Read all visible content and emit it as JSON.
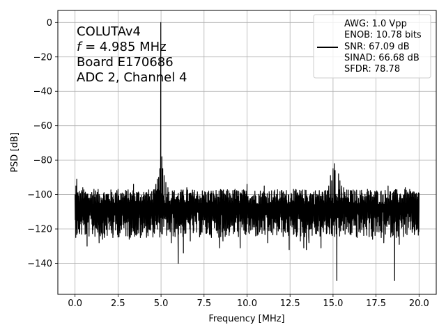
{
  "chart_data": {
    "type": "line",
    "xlabel": "Frequency [MHz]",
    "ylabel": "PSD [dB]",
    "xlim": [
      -1.0,
      21.0
    ],
    "ylim": [
      -158,
      7
    ],
    "xticks": [
      0.0,
      2.5,
      5.0,
      7.5,
      10.0,
      12.5,
      15.0,
      17.5,
      20.0
    ],
    "xtick_labels": [
      "0.0",
      "2.5",
      "5.0",
      "7.5",
      "10.0",
      "12.5",
      "15.0",
      "17.5",
      "20.0"
    ],
    "yticks": [
      0,
      -20,
      -40,
      -60,
      -80,
      -100,
      -120,
      -140
    ],
    "ytick_labels": [
      "0",
      "−20",
      "−40",
      "−60",
      "−80",
      "−100",
      "−120",
      "−140"
    ],
    "grid": true,
    "annotation": {
      "lines": [
        "COLUTAv4",
        "= 4.985 MHz",
        "Board E170686",
        "ADC 2, Channel 4"
      ],
      "italic_symbol": "f"
    },
    "legend": {
      "placement": "top-right",
      "lines": [
        "AWG: 1.0 Vpp",
        "ENOB: 10.78 bits",
        "SNR: 67.09 dB",
        "SINAD: 66.68 dB",
        "SFDR: 78.78"
      ]
    },
    "series": [
      {
        "color": "#000000",
        "noise_floor": {
          "x_range": [
            0.0,
            20.0
          ],
          "level": -108,
          "low": -125,
          "high": -97
        },
        "points": [
          {
            "x": 0.0,
            "y": -103
          },
          {
            "x": 0.02,
            "y": -112
          },
          {
            "x": 0.05,
            "y": -95
          },
          {
            "x": 0.08,
            "y": -116
          },
          {
            "x": 0.1,
            "y": -91
          },
          {
            "x": 0.13,
            "y": -106
          },
          {
            "x": 0.2,
            "y": -120
          },
          {
            "x": 0.45,
            "y": -96
          },
          {
            "x": 0.7,
            "y": -130
          },
          {
            "x": 1.1,
            "y": -97
          },
          {
            "x": 1.4,
            "y": -128
          },
          {
            "x": 1.6,
            "y": -126
          },
          {
            "x": 2.2,
            "y": -125
          },
          {
            "x": 2.5,
            "y": -97
          },
          {
            "x": 3.15,
            "y": -126
          },
          {
            "x": 3.4,
            "y": -94
          },
          {
            "x": 3.8,
            "y": -125
          },
          {
            "x": 4.4,
            "y": -120
          },
          {
            "x": 4.55,
            "y": -98
          },
          {
            "x": 4.7,
            "y": -94
          },
          {
            "x": 4.78,
            "y": -91
          },
          {
            "x": 4.86,
            "y": -90
          },
          {
            "x": 4.93,
            "y": -85
          },
          {
            "x": 4.985,
            "y": 0
          },
          {
            "x": 5.05,
            "y": -78
          },
          {
            "x": 5.1,
            "y": -85
          },
          {
            "x": 5.18,
            "y": -89
          },
          {
            "x": 5.28,
            "y": -93
          },
          {
            "x": 5.4,
            "y": -96
          },
          {
            "x": 5.6,
            "y": -128
          },
          {
            "x": 5.85,
            "y": -107
          },
          {
            "x": 6.0,
            "y": -140
          },
          {
            "x": 6.1,
            "y": -106
          },
          {
            "x": 6.3,
            "y": -134
          },
          {
            "x": 6.5,
            "y": -96
          },
          {
            "x": 6.7,
            "y": -127
          },
          {
            "x": 8.4,
            "y": -131
          },
          {
            "x": 8.6,
            "y": -127
          },
          {
            "x": 9.3,
            "y": -97
          },
          {
            "x": 9.6,
            "y": -131
          },
          {
            "x": 10.0,
            "y": -94
          },
          {
            "x": 10.6,
            "y": -122
          },
          {
            "x": 11.0,
            "y": -95
          },
          {
            "x": 11.2,
            "y": -128
          },
          {
            "x": 12.45,
            "y": -132
          },
          {
            "x": 12.7,
            "y": -97
          },
          {
            "x": 13.1,
            "y": -127
          },
          {
            "x": 13.3,
            "y": -131
          },
          {
            "x": 13.45,
            "y": -132
          },
          {
            "x": 13.6,
            "y": -128
          },
          {
            "x": 14.1,
            "y": -121
          },
          {
            "x": 14.3,
            "y": -131
          },
          {
            "x": 14.75,
            "y": -95
          },
          {
            "x": 14.85,
            "y": -89
          },
          {
            "x": 14.92,
            "y": -92
          },
          {
            "x": 15.0,
            "y": -85
          },
          {
            "x": 15.07,
            "y": -82
          },
          {
            "x": 15.12,
            "y": -86
          },
          {
            "x": 15.17,
            "y": -118
          },
          {
            "x": 15.22,
            "y": -150
          },
          {
            "x": 15.26,
            "y": -112
          },
          {
            "x": 15.32,
            "y": -88
          },
          {
            "x": 15.4,
            "y": -92
          },
          {
            "x": 15.5,
            "y": -95
          },
          {
            "x": 15.62,
            "y": -96
          },
          {
            "x": 16.0,
            "y": -122
          },
          {
            "x": 16.4,
            "y": -125
          },
          {
            "x": 17.0,
            "y": -97
          },
          {
            "x": 17.3,
            "y": -126
          },
          {
            "x": 17.8,
            "y": -125
          },
          {
            "x": 17.95,
            "y": -128
          },
          {
            "x": 18.2,
            "y": -95
          },
          {
            "x": 18.58,
            "y": -150
          },
          {
            "x": 18.85,
            "y": -129
          },
          {
            "x": 19.2,
            "y": -96
          },
          {
            "x": 19.6,
            "y": -122
          },
          {
            "x": 20.0,
            "y": -108
          }
        ]
      }
    ]
  }
}
